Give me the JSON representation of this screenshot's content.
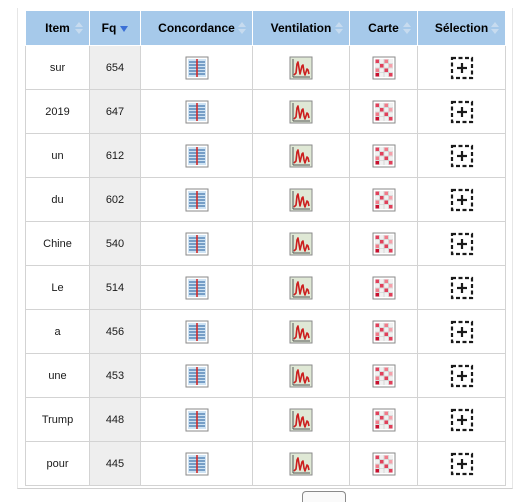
{
  "table": {
    "headers": {
      "item": "Item",
      "fq": "Fq",
      "concordance": "Concordance",
      "ventilation": "Ventilation",
      "carte": "Carte",
      "selection": "Sélection"
    },
    "sorted_column": "fq",
    "sort_direction": "descending",
    "rows": [
      {
        "item": "sur",
        "fq": "654"
      },
      {
        "item": "2019",
        "fq": "647"
      },
      {
        "item": "un",
        "fq": "612"
      },
      {
        "item": "du",
        "fq": "602"
      },
      {
        "item": "Chine",
        "fq": "540"
      },
      {
        "item": "Le",
        "fq": "514"
      },
      {
        "item": "a",
        "fq": "456"
      },
      {
        "item": "une",
        "fq": "453"
      },
      {
        "item": "Trump",
        "fq": "448"
      },
      {
        "item": "pour",
        "fq": "445"
      }
    ]
  },
  "icons": {
    "concordance": "concordance-icon",
    "ventilation": "ventilation-chart-icon",
    "carte": "map-grid-icon",
    "selection": "select-add-icon"
  },
  "colors": {
    "header_bg": "#a6c9ea",
    "fq_cell_bg": "#eeeeee",
    "sort_arrow_active": "#3b6fd6",
    "chart_line": "#cc1f1f"
  }
}
